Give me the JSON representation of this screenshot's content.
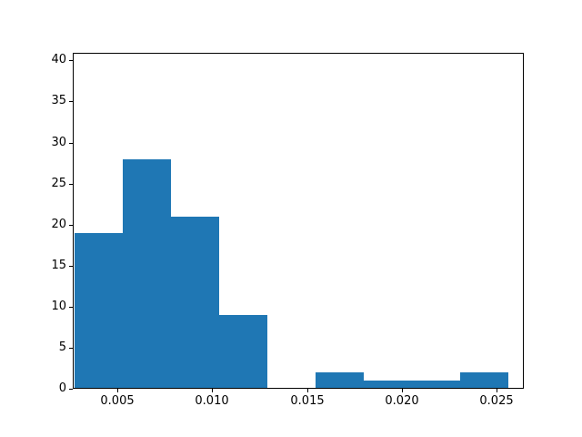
{
  "chart_data": {
    "type": "bar",
    "subtype": "histogram",
    "title": "",
    "xlabel": "",
    "ylabel": "",
    "grid": false,
    "legend": null,
    "background_color": "#ffffff",
    "bar_color": "#1f77b4",
    "spine_color": "#000000",
    "bin_edges": [
      0.00273,
      0.00527,
      0.00782,
      0.01036,
      0.0129,
      0.01545,
      0.01799,
      0.02053,
      0.02308,
      0.02562
    ],
    "counts": [
      19,
      28,
      21,
      9,
      0,
      2,
      1,
      1,
      2
    ],
    "xlim": [
      0.002634,
      0.02644
    ],
    "ylim": [
      0,
      40.93
    ],
    "x_ticks": [
      0.005,
      0.01,
      0.015,
      0.02,
      0.025
    ],
    "x_tick_labels": [
      "0.005",
      "0.010",
      "0.015",
      "0.020",
      "0.025"
    ],
    "y_ticks": [
      0,
      5,
      10,
      15,
      20,
      25,
      30,
      35,
      40
    ],
    "y_tick_labels": [
      "0",
      "5",
      "10",
      "15",
      "20",
      "25",
      "30",
      "35",
      "40"
    ]
  }
}
